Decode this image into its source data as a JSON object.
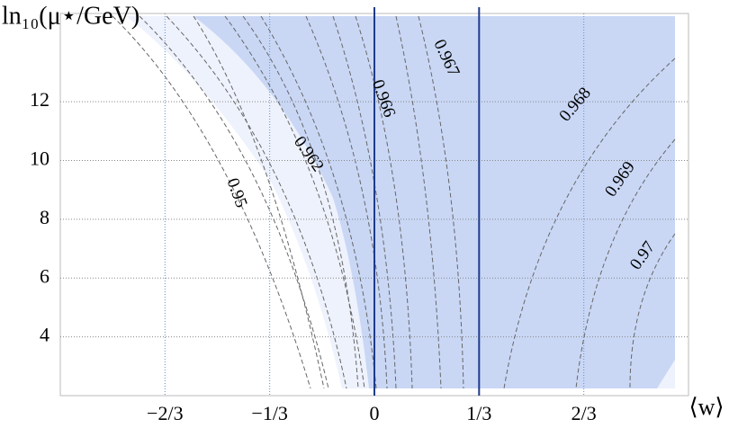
{
  "chart_data": {
    "type": "contour",
    "x_label": "⟨w⟩",
    "y_label": "ln₁₀(μ⋆/GeV)",
    "xlim": [
      -1,
      1
    ],
    "ylim": [
      2,
      15
    ],
    "xticks": [
      {
        "value": -0.6667,
        "label": "−2/3"
      },
      {
        "value": -0.3333,
        "label": "−1/3"
      },
      0,
      {
        "value": 0.3333,
        "label": "1/3"
      },
      {
        "value": 0.6667,
        "label": "2/3"
      }
    ],
    "yticks": [
      4,
      6,
      8,
      10,
      12
    ],
    "vlines": [
      0,
      0.3333
    ],
    "vline_color": "#1f3a8a",
    "region_color": "#c9d7f5",
    "contour_levels": [
      0.95,
      0.962,
      0.966,
      0.967,
      0.968,
      0.969,
      0.97
    ]
  }
}
